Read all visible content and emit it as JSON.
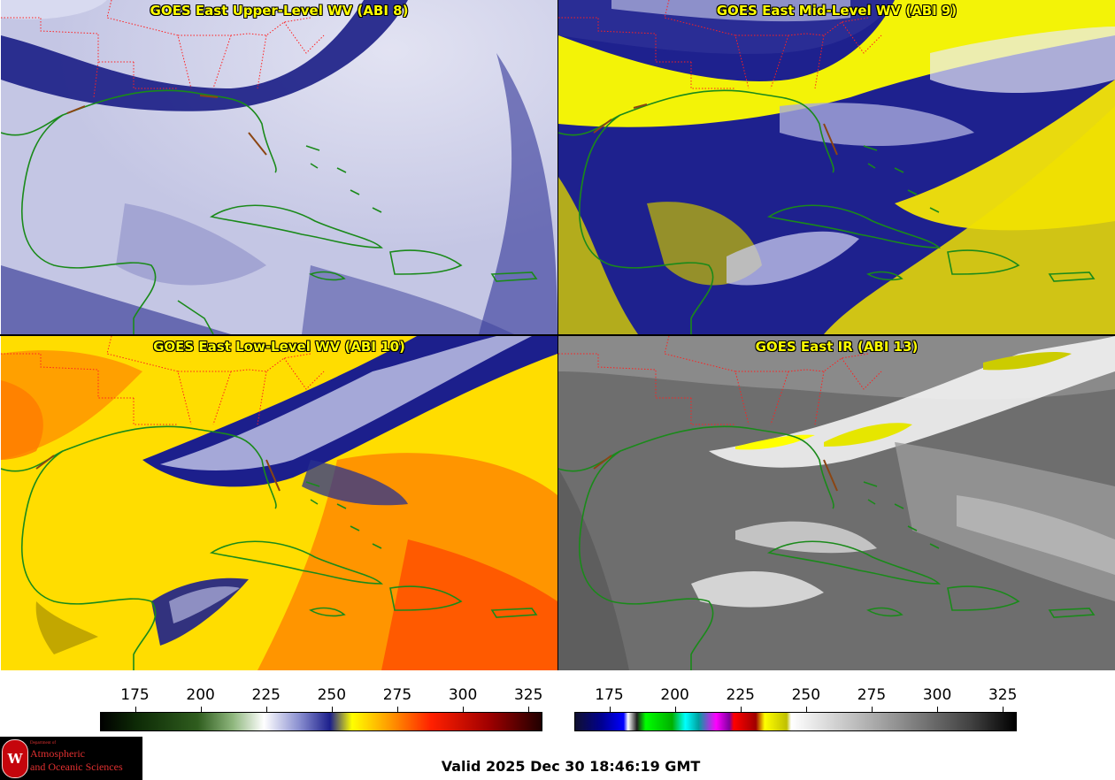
{
  "panels": [
    {
      "title": "GOES East Upper-Level WV (ABI 8)"
    },
    {
      "title": "GOES East Mid-Level WV (ABI 9)"
    },
    {
      "title": "GOES East Low-Level WV (ABI 10)"
    },
    {
      "title": "GOES East IR (ABI 13)"
    }
  ],
  "colorbar_wv": {
    "ticks": [
      "175",
      "200",
      "225",
      "250",
      "275",
      "300",
      "325"
    ],
    "range": [
      162,
      330
    ]
  },
  "colorbar_ir": {
    "ticks": [
      "175",
      "200",
      "225",
      "250",
      "275",
      "300",
      "325"
    ],
    "range": [
      162,
      330
    ]
  },
  "valid_time": "Valid 2025 Dec 30 18:46:19 GMT",
  "logo": {
    "line1": "Department of",
    "line2": "Atmospheric",
    "line3": "and Oceanic Sciences",
    "seal_letter": "W"
  },
  "colors": {
    "title": "#ffff00",
    "state_borders": "#ff2020",
    "coastline": "#1a8a1a"
  }
}
